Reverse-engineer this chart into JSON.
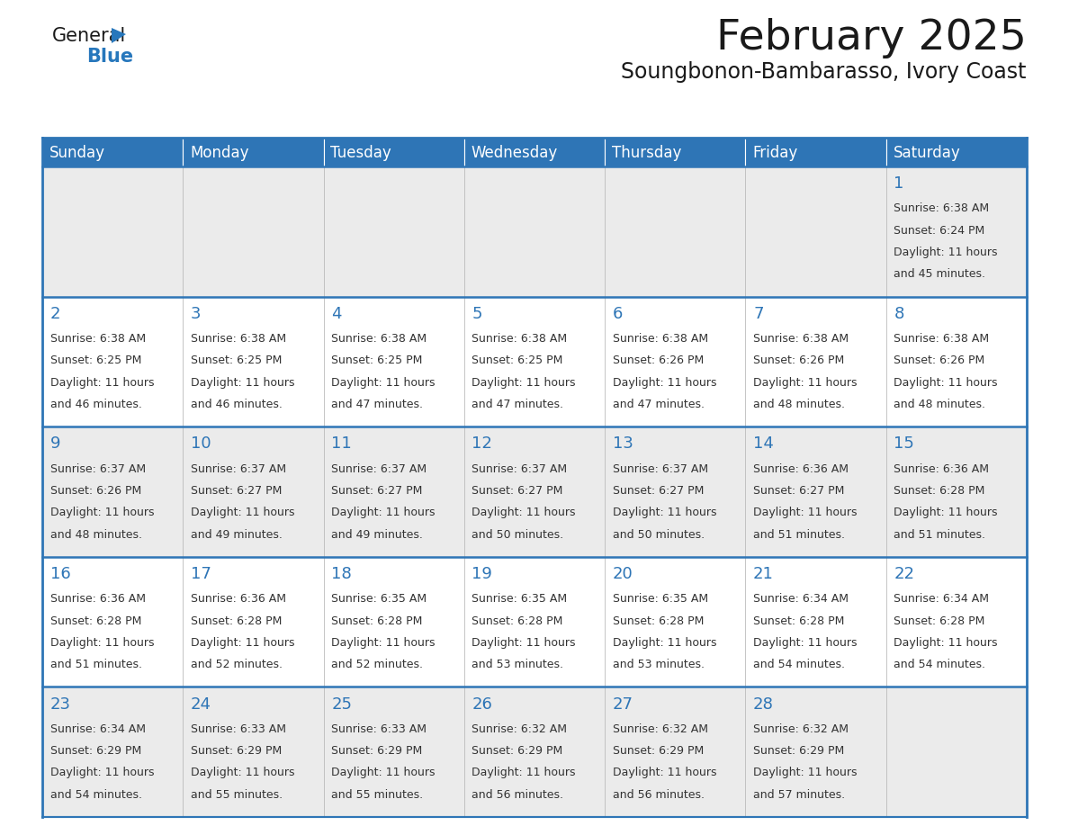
{
  "title": "February 2025",
  "subtitle": "Soungbonon-Bambarasso, Ivory Coast",
  "header_color": "#2e75b6",
  "header_text_color": "#ffffff",
  "row_colors": [
    "#ebebeb",
    "#ffffff",
    "#ebebeb",
    "#ffffff",
    "#ebebeb"
  ],
  "border_color": "#2e75b6",
  "cell_border_color": "#a0a0a0",
  "text_color": "#333333",
  "day_number_color": "#2e75b6",
  "days_of_week": [
    "Sunday",
    "Monday",
    "Tuesday",
    "Wednesday",
    "Thursday",
    "Friday",
    "Saturday"
  ],
  "logo_general_color": "#1a1a1a",
  "logo_blue_color": "#2777bc",
  "title_fontsize": 34,
  "subtitle_fontsize": 17,
  "dow_fontsize": 12,
  "day_num_fontsize": 13,
  "cell_text_fontsize": 9,
  "calendar": [
    [
      null,
      null,
      null,
      null,
      null,
      null,
      {
        "day": 1,
        "sunrise": "6:38 AM",
        "sunset": "6:24 PM",
        "daylight": "11 hours",
        "daylight2": "and 45 minutes."
      }
    ],
    [
      {
        "day": 2,
        "sunrise": "6:38 AM",
        "sunset": "6:25 PM",
        "daylight": "11 hours",
        "daylight2": "and 46 minutes."
      },
      {
        "day": 3,
        "sunrise": "6:38 AM",
        "sunset": "6:25 PM",
        "daylight": "11 hours",
        "daylight2": "and 46 minutes."
      },
      {
        "day": 4,
        "sunrise": "6:38 AM",
        "sunset": "6:25 PM",
        "daylight": "11 hours",
        "daylight2": "and 47 minutes."
      },
      {
        "day": 5,
        "sunrise": "6:38 AM",
        "sunset": "6:25 PM",
        "daylight": "11 hours",
        "daylight2": "and 47 minutes."
      },
      {
        "day": 6,
        "sunrise": "6:38 AM",
        "sunset": "6:26 PM",
        "daylight": "11 hours",
        "daylight2": "and 47 minutes."
      },
      {
        "day": 7,
        "sunrise": "6:38 AM",
        "sunset": "6:26 PM",
        "daylight": "11 hours",
        "daylight2": "and 48 minutes."
      },
      {
        "day": 8,
        "sunrise": "6:38 AM",
        "sunset": "6:26 PM",
        "daylight": "11 hours",
        "daylight2": "and 48 minutes."
      }
    ],
    [
      {
        "day": 9,
        "sunrise": "6:37 AM",
        "sunset": "6:26 PM",
        "daylight": "11 hours",
        "daylight2": "and 48 minutes."
      },
      {
        "day": 10,
        "sunrise": "6:37 AM",
        "sunset": "6:27 PM",
        "daylight": "11 hours",
        "daylight2": "and 49 minutes."
      },
      {
        "day": 11,
        "sunrise": "6:37 AM",
        "sunset": "6:27 PM",
        "daylight": "11 hours",
        "daylight2": "and 49 minutes."
      },
      {
        "day": 12,
        "sunrise": "6:37 AM",
        "sunset": "6:27 PM",
        "daylight": "11 hours",
        "daylight2": "and 50 minutes."
      },
      {
        "day": 13,
        "sunrise": "6:37 AM",
        "sunset": "6:27 PM",
        "daylight": "11 hours",
        "daylight2": "and 50 minutes."
      },
      {
        "day": 14,
        "sunrise": "6:36 AM",
        "sunset": "6:27 PM",
        "daylight": "11 hours",
        "daylight2": "and 51 minutes."
      },
      {
        "day": 15,
        "sunrise": "6:36 AM",
        "sunset": "6:28 PM",
        "daylight": "11 hours",
        "daylight2": "and 51 minutes."
      }
    ],
    [
      {
        "day": 16,
        "sunrise": "6:36 AM",
        "sunset": "6:28 PM",
        "daylight": "11 hours",
        "daylight2": "and 51 minutes."
      },
      {
        "day": 17,
        "sunrise": "6:36 AM",
        "sunset": "6:28 PM",
        "daylight": "11 hours",
        "daylight2": "and 52 minutes."
      },
      {
        "day": 18,
        "sunrise": "6:35 AM",
        "sunset": "6:28 PM",
        "daylight": "11 hours",
        "daylight2": "and 52 minutes."
      },
      {
        "day": 19,
        "sunrise": "6:35 AM",
        "sunset": "6:28 PM",
        "daylight": "11 hours",
        "daylight2": "and 53 minutes."
      },
      {
        "day": 20,
        "sunrise": "6:35 AM",
        "sunset": "6:28 PM",
        "daylight": "11 hours",
        "daylight2": "and 53 minutes."
      },
      {
        "day": 21,
        "sunrise": "6:34 AM",
        "sunset": "6:28 PM",
        "daylight": "11 hours",
        "daylight2": "and 54 minutes."
      },
      {
        "day": 22,
        "sunrise": "6:34 AM",
        "sunset": "6:28 PM",
        "daylight": "11 hours",
        "daylight2": "and 54 minutes."
      }
    ],
    [
      {
        "day": 23,
        "sunrise": "6:34 AM",
        "sunset": "6:29 PM",
        "daylight": "11 hours",
        "daylight2": "and 54 minutes."
      },
      {
        "day": 24,
        "sunrise": "6:33 AM",
        "sunset": "6:29 PM",
        "daylight": "11 hours",
        "daylight2": "and 55 minutes."
      },
      {
        "day": 25,
        "sunrise": "6:33 AM",
        "sunset": "6:29 PM",
        "daylight": "11 hours",
        "daylight2": "and 55 minutes."
      },
      {
        "day": 26,
        "sunrise": "6:32 AM",
        "sunset": "6:29 PM",
        "daylight": "11 hours",
        "daylight2": "and 56 minutes."
      },
      {
        "day": 27,
        "sunrise": "6:32 AM",
        "sunset": "6:29 PM",
        "daylight": "11 hours",
        "daylight2": "and 56 minutes."
      },
      {
        "day": 28,
        "sunrise": "6:32 AM",
        "sunset": "6:29 PM",
        "daylight": "11 hours",
        "daylight2": "and 57 minutes."
      },
      null
    ]
  ]
}
